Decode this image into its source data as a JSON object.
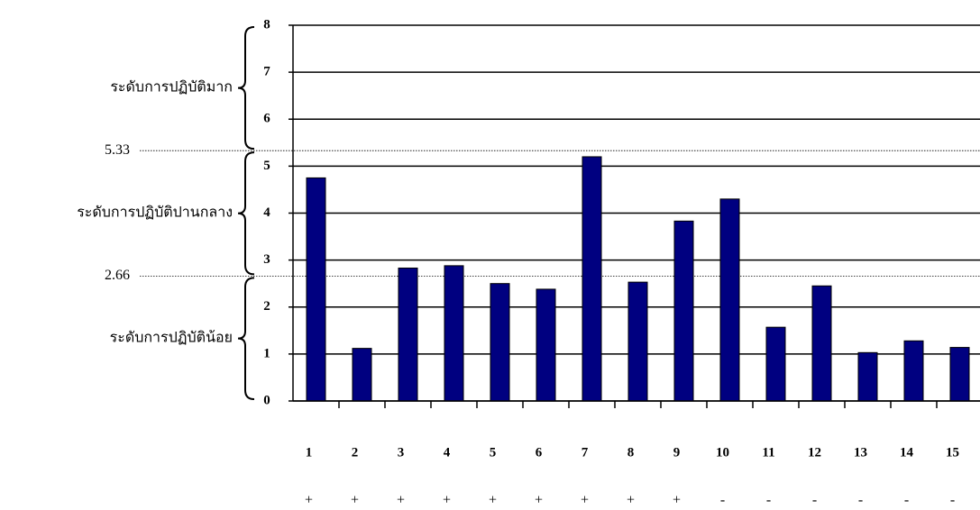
{
  "chart_data": {
    "type": "bar",
    "categories": [
      "1",
      "2",
      "3",
      "4",
      "5",
      "6",
      "7",
      "8",
      "9",
      "10",
      "11",
      "12",
      "13",
      "14",
      "15"
    ],
    "signs": [
      "+",
      "+",
      "+",
      "+",
      "+",
      "+",
      "+",
      "+",
      "+",
      "-",
      "-",
      "-",
      "-",
      "-",
      "-"
    ],
    "values": [
      4.75,
      1.12,
      2.83,
      2.88,
      2.5,
      2.38,
      5.2,
      2.53,
      3.83,
      4.3,
      1.57,
      2.45,
      1.03,
      1.28,
      1.14
    ],
    "color": "#000080",
    "ylim": [
      0,
      8
    ],
    "yticks": [
      0,
      1,
      2,
      3,
      4,
      5,
      6,
      7,
      8
    ],
    "grid": true,
    "reference_lines": [
      5.33,
      2.66
    ],
    "level_labels": [
      "ระดับการปฏิบัติมาก",
      "ระดับการปฏิบัติปานกลาง",
      "ระดับการปฏิบัติน้อย"
    ]
  }
}
